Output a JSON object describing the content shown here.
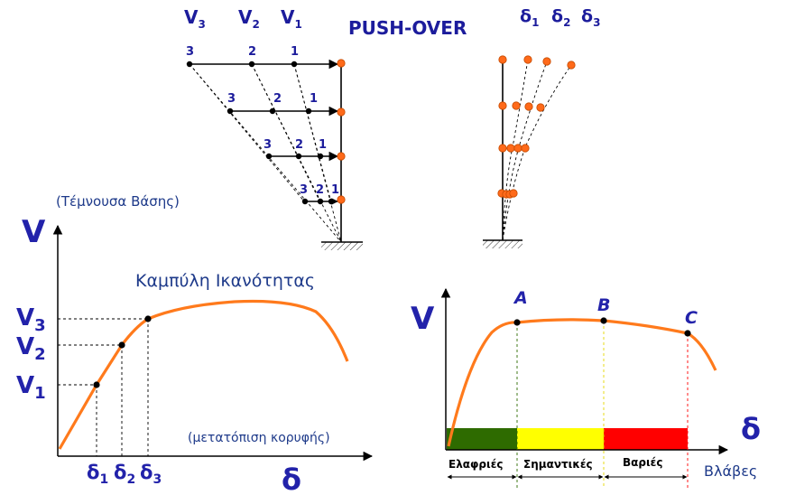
{
  "title": "PUSH-OVER",
  "top_force_labels": [
    "V",
    "V",
    "V"
  ],
  "top_force_subs": [
    "3",
    "2",
    "1"
  ],
  "top_disp_labels": [
    "δ",
    "δ",
    "δ"
  ],
  "top_disp_subs": [
    "1",
    "2",
    "3"
  ],
  "load_levels": [
    "3",
    "2",
    "1"
  ],
  "left_chart": {
    "y_axis_symbol": "V",
    "y_axis_note": "(Τέμνουσα Βάσης)",
    "curve_title": "Καμπύλη Ικανότητας",
    "x_axis_note": "(μετατόπιση κορυφής)",
    "x_axis_symbol": "δ",
    "v_labels": [
      "V",
      "V",
      "V"
    ],
    "v_subs": [
      "3",
      "2",
      "1"
    ],
    "d_labels": [
      "δ",
      "δ",
      "δ"
    ],
    "d_subs": [
      "1",
      "2",
      "3"
    ]
  },
  "right_chart": {
    "y_axis_symbol": "V",
    "x_axis_symbol": "δ",
    "points": [
      "A",
      "B",
      "C"
    ],
    "damage_label": "Βλάβες",
    "zones": [
      {
        "label": "Ελαφριές",
        "color": "#2e6b00"
      },
      {
        "label": "Σημαντικές",
        "color": "#ffff00"
      },
      {
        "label": "Βαριές",
        "color": "#ff0000"
      }
    ]
  },
  "colors": {
    "curve": "#ff7a1c",
    "node": "#ff6a1a",
    "label_blue": "#1c1c9c",
    "zone_green": "#2e6b00",
    "zone_yellow": "#ffff00",
    "zone_red": "#ff0000"
  }
}
